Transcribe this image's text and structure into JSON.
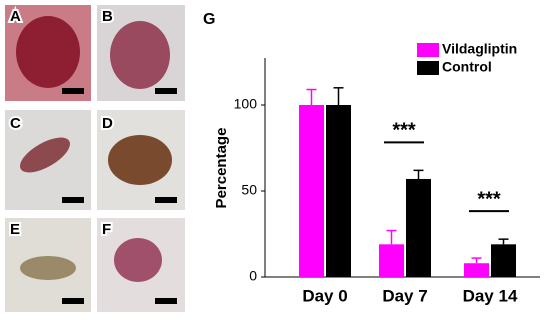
{
  "panel_labels": [
    "A",
    "B",
    "C",
    "D",
    "E",
    "F"
  ],
  "chart_label": "G",
  "chart_data": {
    "type": "bar",
    "ylabel": "Percentage",
    "categories": [
      "Day 0",
      "Day 7",
      "Day 14"
    ],
    "series": [
      {
        "name": "Vildagliptin",
        "color": "#ff00ff",
        "values": [
          100,
          19,
          8
        ],
        "errors": [
          9,
          8,
          3
        ]
      },
      {
        "name": "Control",
        "color": "#000000",
        "values": [
          100,
          57,
          19
        ],
        "errors": [
          10,
          5,
          3
        ]
      }
    ],
    "annotations": [
      "***",
      "***"
    ],
    "ylim": [
      0,
      125
    ],
    "yticks": [
      0,
      50,
      100
    ],
    "grid": false,
    "legend": "top-right"
  }
}
